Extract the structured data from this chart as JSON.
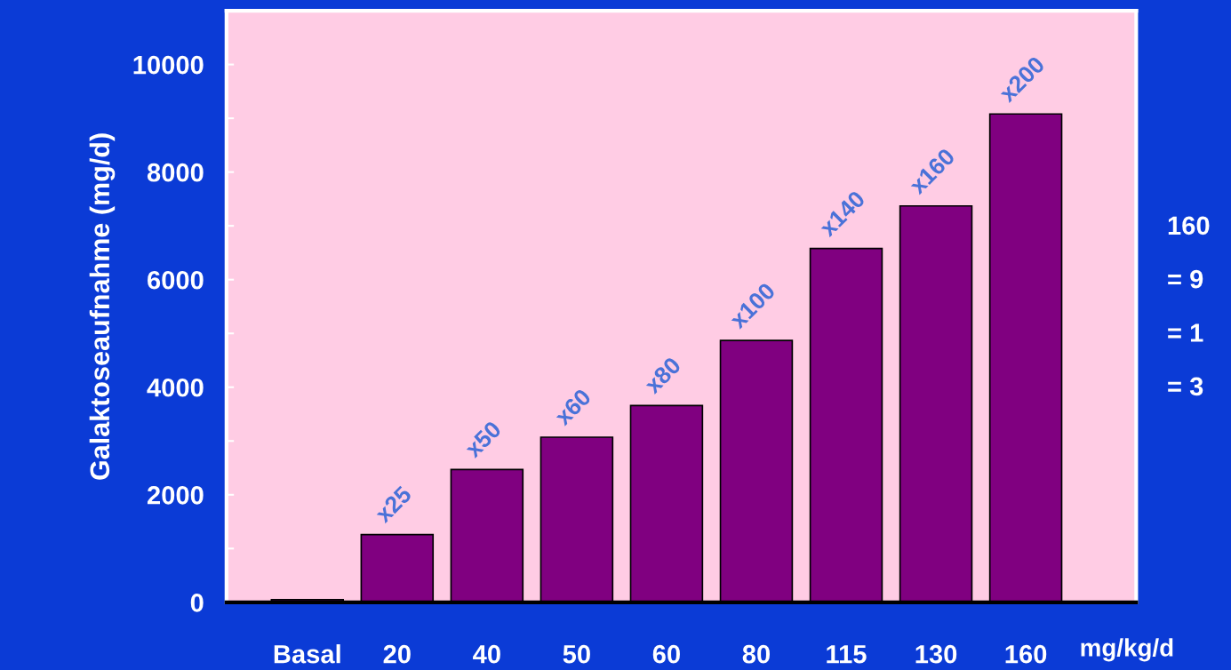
{
  "chart_data": {
    "type": "bar",
    "ylabel": "Galaktoseaufnahme (mg/d)",
    "xlabel": "mg/kg/d",
    "categories": [
      "Basal",
      "20",
      "40",
      "50",
      "60",
      "80",
      "115",
      "130",
      "160"
    ],
    "values": [
      50,
      1260,
      2470,
      3070,
      3660,
      4870,
      6580,
      7370,
      9080
    ],
    "color": "#800080",
    "value_labels": [
      null,
      "x25",
      "x50",
      "x60",
      "x80",
      "x100",
      "x140",
      "x160",
      "x200"
    ],
    "ylim": [
      0,
      11000
    ],
    "yticks": [
      0,
      {
        "value": 1000,
        "label": null
      },
      2000,
      {
        "value": 3000,
        "label": null
      },
      4000,
      {
        "value": 5000,
        "label": null
      },
      6000,
      {
        "value": 7000,
        "label": null
      },
      8000,
      {
        "value": 9000,
        "label": null
      },
      10000
    ],
    "grid": false,
    "legend": false,
    "annotations": [
      "160",
      "= 9",
      "= 1",
      "= 3"
    ]
  }
}
